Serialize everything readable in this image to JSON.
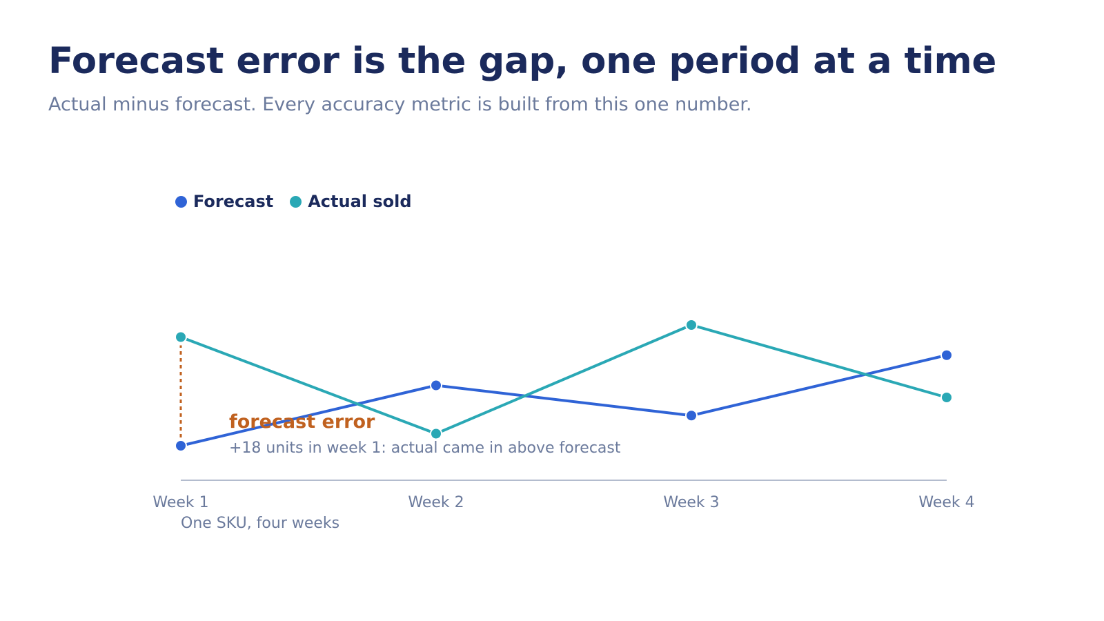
{
  "header": {
    "title": "Forecast error is the gap, one period at a time",
    "subtitle": "Actual minus forecast. Every accuracy metric is built from this one number."
  },
  "legend": {
    "items": [
      {
        "label": "Forecast",
        "color": "#2f63d6"
      },
      {
        "label": "Actual sold",
        "color": "#2aa8b5"
      }
    ]
  },
  "annotation": {
    "title": "forecast error",
    "note": "+18 units in week 1: actual came in above forecast",
    "color": "#c0611f"
  },
  "caption": "One SKU, four weeks",
  "chart_data": {
    "type": "line",
    "categories": [
      "Week 1",
      "Week 2",
      "Week 3",
      "Week 4"
    ],
    "series": [
      {
        "name": "Forecast",
        "color": "#2f63d6",
        "values": [
          100,
          110,
          105,
          115
        ]
      },
      {
        "name": "Actual sold",
        "color": "#2aa8b5",
        "values": [
          118,
          102,
          120,
          108
        ]
      }
    ],
    "ylim": [
      80,
      140
    ],
    "grid": false,
    "axis_color": "#9aa5bd",
    "highlight": {
      "category_index": 0,
      "from_series": "Forecast",
      "to_series": "Actual sold",
      "error": 18
    }
  }
}
